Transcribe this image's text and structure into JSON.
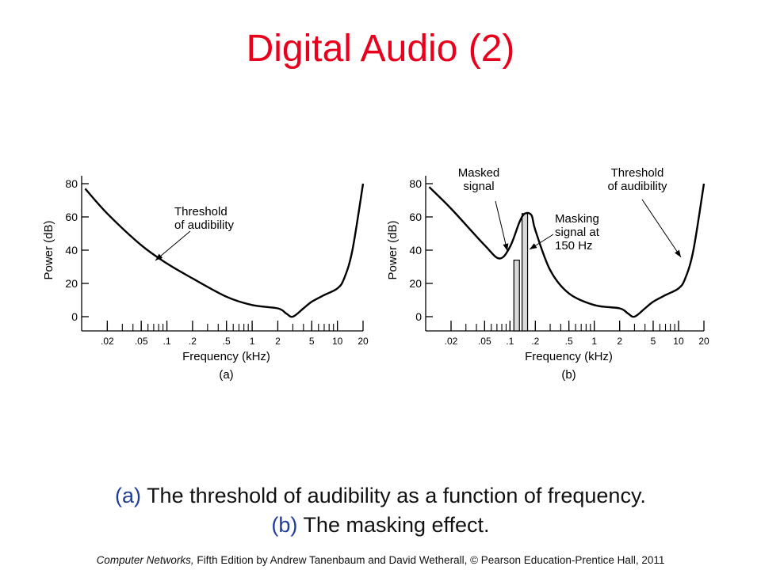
{
  "slide": {
    "title": "Digital Audio (2)",
    "caption": {
      "line1_tag": "(a)",
      "line1_text": "The threshold of audibility as a function of frequency.",
      "line2_tag": "(b)",
      "line2_text": "The masking effect."
    },
    "footer": {
      "book": "Computer Networks,",
      "rest": "Fifth Edition by Andrew Tanenbaum and David Wetherall, © Pearson Education-Prentice Hall, 2011"
    }
  },
  "colors": {
    "title": "#e8001c",
    "caption_tag": "#1f3d99",
    "ink": "#000000",
    "bar_fill": "#d9d9d9"
  },
  "chart_data": [
    {
      "type": "line",
      "panel_label": "(a)",
      "xlabel": "Frequency (kHz)",
      "ylabel": "Power (dB)",
      "x_scale": "log",
      "xlim": [
        0.01,
        20
      ],
      "ylim": [
        0,
        80
      ],
      "x_tick_labels": [
        ".02",
        ".05",
        ".1",
        ".2",
        ".5",
        "1",
        "2",
        "5",
        "10",
        "20"
      ],
      "y_tick_labels": [
        "0",
        "20",
        "40",
        "60",
        "80"
      ],
      "series": [
        {
          "x": [
            0.011,
            0.02,
            0.05,
            0.1,
            0.2,
            0.5,
            1,
            2,
            2.5,
            3,
            4,
            5,
            7,
            10,
            12,
            15,
            20
          ],
          "y": [
            77,
            62,
            43,
            32,
            23,
            12,
            7,
            5,
            2,
            0,
            5,
            9,
            13,
            17,
            23,
            40,
            80
          ]
        }
      ],
      "annotations": [
        {
          "text_lines": [
            "Threshold",
            "of audibility"
          ],
          "x": 0.1,
          "y": 32
        }
      ]
    },
    {
      "type": "line",
      "panel_label": "(b)",
      "xlabel": "Frequency (kHz)",
      "ylabel": "Power (dB)",
      "x_scale": "log",
      "xlim": [
        0.01,
        20
      ],
      "ylim": [
        0,
        80
      ],
      "x_tick_labels": [
        ".02",
        ".05",
        ".1",
        ".2",
        ".5",
        "1",
        "2",
        "5",
        "10",
        "20"
      ],
      "y_tick_labels": [
        "0",
        "20",
        "40",
        "60",
        "80"
      ],
      "series": [
        {
          "x": [
            0.011,
            0.02,
            0.05,
            0.075,
            0.1,
            0.13,
            0.15,
            0.18,
            0.2,
            0.3,
            0.5,
            1,
            2,
            2.5,
            3,
            4,
            5,
            7,
            10,
            12,
            15,
            20
          ],
          "y": [
            78,
            65,
            43,
            35,
            42,
            57,
            62,
            61,
            52,
            28,
            14,
            7,
            5,
            2,
            0,
            5,
            9,
            13,
            17,
            23,
            40,
            80
          ]
        }
      ],
      "bars": [
        {
          "x": 0.12,
          "value": 34
        },
        {
          "x": 0.15,
          "value": 62
        }
      ],
      "annotations": [
        {
          "text_lines": [
            "Masked",
            "signal"
          ],
          "x": 0.12,
          "y": 34
        },
        {
          "text_lines": [
            "Masking",
            "signal at",
            "150 Hz"
          ],
          "x": 0.15,
          "y": 38
        },
        {
          "text_lines": [
            "Threshold",
            "of audibility"
          ],
          "x": 12,
          "y": 34
        }
      ]
    }
  ]
}
